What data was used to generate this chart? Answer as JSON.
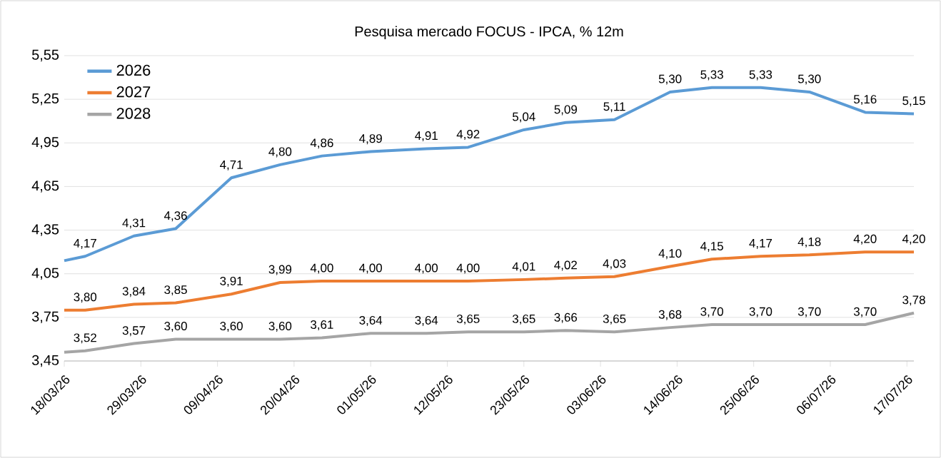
{
  "chart_data": {
    "type": "line",
    "title": "Pesquisa mercado FOCUS - IPCA, % 12m",
    "x": [
      "2026-03-18",
      "2026-03-21",
      "2026-03-28",
      "2026-04-03",
      "2026-04-11",
      "2026-04-18",
      "2026-04-24",
      "2026-05-01",
      "2026-05-09",
      "2026-05-15",
      "2026-05-23",
      "2026-05-29",
      "2026-06-05",
      "2026-06-13",
      "2026-06-19",
      "2026-06-26",
      "2026-07-03",
      "2026-07-11",
      "2026-07-18"
    ],
    "series": [
      {
        "name": "2026",
        "color": "#5b9bd5",
        "values": [
          4.14,
          4.17,
          4.31,
          4.36,
          4.71,
          4.8,
          4.86,
          4.89,
          4.91,
          4.92,
          5.04,
          5.09,
          5.11,
          5.3,
          5.33,
          5.33,
          5.3,
          5.16,
          5.15
        ],
        "value_labels": [
          null,
          "4,17",
          "4,31",
          "4,36",
          "4,71",
          "4,80",
          "4,86",
          "4,89",
          "4,91",
          "4,92",
          "5,04",
          "5,09",
          "5,11",
          "5,30",
          "5,33",
          "5,33",
          "5,30",
          "5,16",
          "5,15"
        ]
      },
      {
        "name": "2027",
        "color": "#ed7d31",
        "values": [
          3.8,
          3.8,
          3.84,
          3.85,
          3.91,
          3.99,
          4.0,
          4.0,
          4.0,
          4.0,
          4.01,
          4.02,
          4.03,
          4.1,
          4.15,
          4.17,
          4.18,
          4.2,
          4.2
        ],
        "value_labels": [
          null,
          "3,80",
          "3,84",
          "3,85",
          "3,91",
          "3,99",
          "4,00",
          "4,00",
          "4,00",
          "4,00",
          "4,01",
          "4,02",
          "4,03",
          "4,10",
          "4,15",
          "4,17",
          "4,18",
          "4,20",
          "4,20"
        ]
      },
      {
        "name": "2028",
        "color": "#a5a5a5",
        "values": [
          3.51,
          3.52,
          3.57,
          3.6,
          3.6,
          3.6,
          3.61,
          3.64,
          3.64,
          3.65,
          3.65,
          3.66,
          3.65,
          3.68,
          3.7,
          3.7,
          3.7,
          3.7,
          3.78
        ],
        "value_labels": [
          null,
          "3,52",
          "3,57",
          "3,60",
          "3,60",
          "3,60",
          "3,61",
          "3,64",
          "3,64",
          "3,65",
          "3,65",
          "3,66",
          "3,65",
          "3,68",
          "3,70",
          "3,70",
          "3,70",
          "3,70",
          "3,78"
        ]
      }
    ],
    "xlim": [
      "2026-03-18",
      "2026-07-18"
    ],
    "xticks": [
      {
        "value": "2026-03-18",
        "label": "18/03/26"
      },
      {
        "value": "2026-03-29",
        "label": "29/03/26"
      },
      {
        "value": "2026-04-09",
        "label": "09/04/26"
      },
      {
        "value": "2026-04-20",
        "label": "20/04/26"
      },
      {
        "value": "2026-05-01",
        "label": "01/05/26"
      },
      {
        "value": "2026-05-12",
        "label": "12/05/26"
      },
      {
        "value": "2026-05-23",
        "label": "23/05/26"
      },
      {
        "value": "2026-06-03",
        "label": "03/06/26"
      },
      {
        "value": "2026-06-14",
        "label": "14/06/26"
      },
      {
        "value": "2026-06-25",
        "label": "25/06/26"
      },
      {
        "value": "2026-07-06",
        "label": "06/07/26"
      },
      {
        "value": "2026-07-17",
        "label": "17/07/26"
      }
    ],
    "ylim": [
      3.45,
      5.55
    ],
    "yticks": [
      {
        "value": 3.45,
        "label": "3,45"
      },
      {
        "value": 3.75,
        "label": "3,75"
      },
      {
        "value": 4.05,
        "label": "4,05"
      },
      {
        "value": 4.35,
        "label": "4,35"
      },
      {
        "value": 4.65,
        "label": "4,65"
      },
      {
        "value": 4.95,
        "label": "4,95"
      },
      {
        "value": 5.25,
        "label": "5,25"
      },
      {
        "value": 5.55,
        "label": "5,55"
      }
    ],
    "grid": "y",
    "legend": "top left",
    "marker": "none",
    "line_style": "solid"
  }
}
